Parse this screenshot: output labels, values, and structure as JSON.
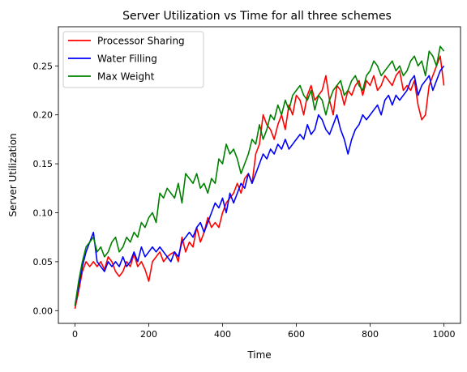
{
  "chart_data": {
    "type": "line",
    "title": "Server Utilization vs Time for all three schemes",
    "xlabel": "Time",
    "ylabel": "Server Utilization",
    "xlim": [
      -45,
      1045
    ],
    "ylim": [
      -0.013,
      0.29
    ],
    "xticks": [
      0,
      200,
      400,
      600,
      800,
      1000
    ],
    "xtick_labels": [
      "0",
      "200",
      "400",
      "600",
      "800",
      "1000"
    ],
    "yticks": [
      0.0,
      0.05,
      0.1,
      0.15,
      0.2,
      0.25
    ],
    "ytick_labels": [
      "0.00",
      "0.05",
      "0.10",
      "0.15",
      "0.20",
      "0.25"
    ],
    "grid": false,
    "legend_position": "upper left",
    "series": [
      {
        "name": "Processor Sharing",
        "color": "#ff0000",
        "x": [
          0,
          10,
          20,
          30,
          40,
          50,
          60,
          70,
          80,
          90,
          100,
          110,
          120,
          130,
          140,
          150,
          160,
          170,
          180,
          190,
          200,
          210,
          220,
          230,
          240,
          250,
          260,
          270,
          280,
          290,
          300,
          310,
          320,
          330,
          340,
          350,
          360,
          370,
          380,
          390,
          400,
          410,
          420,
          430,
          440,
          450,
          460,
          470,
          480,
          490,
          500,
          510,
          520,
          530,
          540,
          550,
          560,
          570,
          580,
          590,
          600,
          610,
          620,
          630,
          640,
          650,
          660,
          670,
          680,
          690,
          700,
          710,
          720,
          730,
          740,
          750,
          760,
          770,
          780,
          790,
          800,
          810,
          820,
          830,
          840,
          850,
          860,
          870,
          880,
          890,
          900,
          910,
          920,
          930,
          940,
          950,
          960,
          970,
          980,
          990,
          1000
        ],
        "y": [
          0.002,
          0.02,
          0.04,
          0.05,
          0.045,
          0.05,
          0.045,
          0.05,
          0.042,
          0.055,
          0.05,
          0.04,
          0.035,
          0.04,
          0.05,
          0.045,
          0.058,
          0.045,
          0.05,
          0.042,
          0.03,
          0.05,
          0.055,
          0.06,
          0.05,
          0.055,
          0.058,
          0.06,
          0.05,
          0.075,
          0.06,
          0.07,
          0.065,
          0.085,
          0.07,
          0.08,
          0.095,
          0.085,
          0.09,
          0.085,
          0.1,
          0.11,
          0.115,
          0.12,
          0.13,
          0.12,
          0.135,
          0.14,
          0.13,
          0.16,
          0.17,
          0.2,
          0.19,
          0.185,
          0.175,
          0.19,
          0.2,
          0.185,
          0.21,
          0.2,
          0.22,
          0.215,
          0.2,
          0.22,
          0.23,
          0.215,
          0.22,
          0.225,
          0.24,
          0.215,
          0.2,
          0.23,
          0.225,
          0.21,
          0.225,
          0.22,
          0.23,
          0.235,
          0.22,
          0.235,
          0.23,
          0.24,
          0.225,
          0.23,
          0.24,
          0.235,
          0.23,
          0.24,
          0.245,
          0.225,
          0.23,
          0.225,
          0.235,
          0.21,
          0.195,
          0.2,
          0.23,
          0.24,
          0.25,
          0.26,
          0.23
        ]
      },
      {
        "name": "Water Filling",
        "color": "#0000ff",
        "x": [
          0,
          10,
          20,
          30,
          40,
          50,
          60,
          70,
          80,
          90,
          100,
          110,
          120,
          130,
          140,
          150,
          160,
          170,
          180,
          190,
          200,
          210,
          220,
          230,
          240,
          250,
          260,
          270,
          280,
          290,
          300,
          310,
          320,
          330,
          340,
          350,
          360,
          370,
          380,
          390,
          400,
          410,
          420,
          430,
          440,
          450,
          460,
          470,
          480,
          490,
          500,
          510,
          520,
          530,
          540,
          550,
          560,
          570,
          580,
          590,
          600,
          610,
          620,
          630,
          640,
          650,
          660,
          670,
          680,
          690,
          700,
          710,
          720,
          730,
          740,
          750,
          760,
          770,
          780,
          790,
          800,
          810,
          820,
          830,
          840,
          850,
          860,
          870,
          880,
          890,
          900,
          910,
          920,
          930,
          940,
          950,
          960,
          970,
          980,
          990,
          1000
        ],
        "y": [
          0.005,
          0.025,
          0.045,
          0.06,
          0.07,
          0.08,
          0.05,
          0.045,
          0.04,
          0.05,
          0.045,
          0.05,
          0.045,
          0.055,
          0.045,
          0.05,
          0.06,
          0.05,
          0.065,
          0.055,
          0.06,
          0.065,
          0.06,
          0.065,
          0.06,
          0.055,
          0.05,
          0.06,
          0.055,
          0.07,
          0.075,
          0.08,
          0.075,
          0.085,
          0.09,
          0.08,
          0.09,
          0.1,
          0.11,
          0.105,
          0.115,
          0.1,
          0.12,
          0.11,
          0.12,
          0.13,
          0.125,
          0.14,
          0.13,
          0.14,
          0.15,
          0.16,
          0.155,
          0.165,
          0.16,
          0.17,
          0.165,
          0.175,
          0.165,
          0.17,
          0.175,
          0.18,
          0.175,
          0.19,
          0.18,
          0.185,
          0.2,
          0.195,
          0.185,
          0.18,
          0.19,
          0.2,
          0.185,
          0.175,
          0.16,
          0.175,
          0.185,
          0.19,
          0.2,
          0.195,
          0.2,
          0.205,
          0.21,
          0.2,
          0.215,
          0.22,
          0.21,
          0.22,
          0.215,
          0.22,
          0.225,
          0.235,
          0.24,
          0.22,
          0.23,
          0.235,
          0.24,
          0.225,
          0.235,
          0.245,
          0.25
        ]
      },
      {
        "name": "Max Weight",
        "color": "#008000",
        "x": [
          0,
          10,
          20,
          30,
          40,
          50,
          60,
          70,
          80,
          90,
          100,
          110,
          120,
          130,
          140,
          150,
          160,
          170,
          180,
          190,
          200,
          210,
          220,
          230,
          240,
          250,
          260,
          270,
          280,
          290,
          300,
          310,
          320,
          330,
          340,
          350,
          360,
          370,
          380,
          390,
          400,
          410,
          420,
          430,
          440,
          450,
          460,
          470,
          480,
          490,
          500,
          510,
          520,
          530,
          540,
          550,
          560,
          570,
          580,
          590,
          600,
          610,
          620,
          630,
          640,
          650,
          660,
          670,
          680,
          690,
          700,
          710,
          720,
          730,
          740,
          750,
          760,
          770,
          780,
          790,
          800,
          810,
          820,
          830,
          840,
          850,
          860,
          870,
          880,
          890,
          900,
          910,
          920,
          930,
          940,
          950,
          960,
          970,
          980,
          990,
          1000
        ],
        "y": [
          0.005,
          0.03,
          0.05,
          0.065,
          0.07,
          0.075,
          0.06,
          0.065,
          0.055,
          0.06,
          0.07,
          0.075,
          0.06,
          0.065,
          0.075,
          0.07,
          0.08,
          0.075,
          0.09,
          0.085,
          0.095,
          0.1,
          0.09,
          0.12,
          0.115,
          0.125,
          0.12,
          0.115,
          0.13,
          0.11,
          0.14,
          0.135,
          0.13,
          0.14,
          0.125,
          0.13,
          0.12,
          0.135,
          0.13,
          0.155,
          0.15,
          0.17,
          0.16,
          0.165,
          0.155,
          0.14,
          0.15,
          0.16,
          0.175,
          0.17,
          0.19,
          0.175,
          0.185,
          0.2,
          0.195,
          0.21,
          0.2,
          0.215,
          0.205,
          0.22,
          0.225,
          0.23,
          0.22,
          0.215,
          0.225,
          0.205,
          0.22,
          0.215,
          0.2,
          0.215,
          0.225,
          0.23,
          0.235,
          0.22,
          0.225,
          0.235,
          0.24,
          0.23,
          0.225,
          0.24,
          0.245,
          0.255,
          0.25,
          0.24,
          0.245,
          0.25,
          0.255,
          0.245,
          0.25,
          0.24,
          0.245,
          0.255,
          0.26,
          0.25,
          0.255,
          0.24,
          0.265,
          0.26,
          0.25,
          0.27,
          0.265
        ]
      }
    ]
  }
}
